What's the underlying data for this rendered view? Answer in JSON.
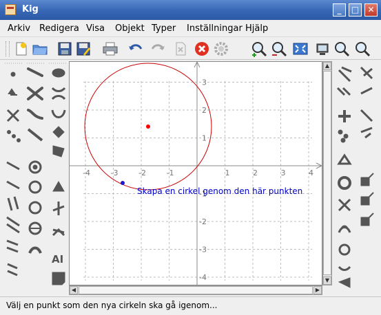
{
  "window": {
    "title": "Kig",
    "min_label": "_",
    "max_label": "□",
    "close_label": "✕"
  },
  "menubar": {
    "items": [
      "Arkiv",
      "Redigera",
      "Visa",
      "Objekt",
      "Typer",
      "Inställningar",
      "Hjälp"
    ]
  },
  "toolbar": {
    "buttons": [
      "new-document-icon",
      "open-folder-icon",
      "save-icon",
      "save-as-icon",
      "print-icon",
      "undo-icon",
      "redo-icon",
      "delete-icon",
      "cancel-icon",
      "settings-gear-icon",
      "zoom-in-icon",
      "zoom-out-icon",
      "fit-to-page-icon",
      "screenshot-icon",
      "zoom-area-icon",
      "zoom-search-icon"
    ]
  },
  "canvas": {
    "x_ticks": [
      "-4",
      "-3",
      "-2",
      "-1",
      "1",
      "2",
      "3",
      "4"
    ],
    "y_ticks": [
      "3",
      "2",
      "1",
      "-1",
      "-2",
      "-3",
      "-4"
    ],
    "tooltip": "Skapa en cirkel genom den här punkten",
    "circle_color": "#cc0000",
    "center_point_color": "#ff0000",
    "through_point_color": "#1a1acc",
    "tooltip_color": "#0000cc"
  },
  "statusbar": {
    "message": "Välj en punkt som den nya cirkeln ska gå igenom..."
  }
}
